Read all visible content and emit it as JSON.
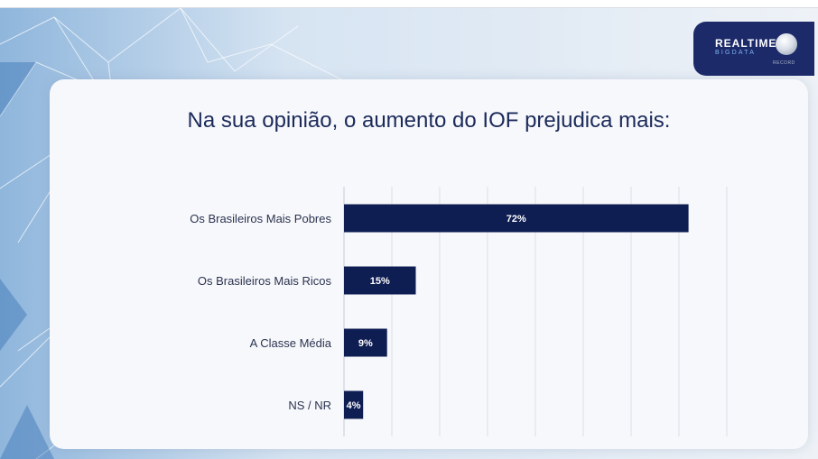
{
  "logo": {
    "main": "REALTIME",
    "sub": "BIGDATA",
    "network": "RECORD"
  },
  "colors": {
    "bar": "#0e1d52",
    "title": "#1b2a5a",
    "label": "#2b3350",
    "grid": "#dadfe8",
    "logo_bg": "#1c2a6a"
  },
  "chart_data": {
    "type": "bar",
    "orientation": "horizontal",
    "title": "Na sua opinião, o aumento do IOF prejudica mais:",
    "categories": [
      "Os Brasileiros Mais Pobres",
      "Os Brasileiros Mais Ricos",
      "A Classe Média",
      "NS / NR"
    ],
    "values": [
      72,
      15,
      9,
      4
    ],
    "value_labels": [
      "72%",
      "15%",
      "9%",
      "4%"
    ],
    "xlim": [
      0,
      80
    ],
    "grid": true,
    "legend": "none"
  }
}
